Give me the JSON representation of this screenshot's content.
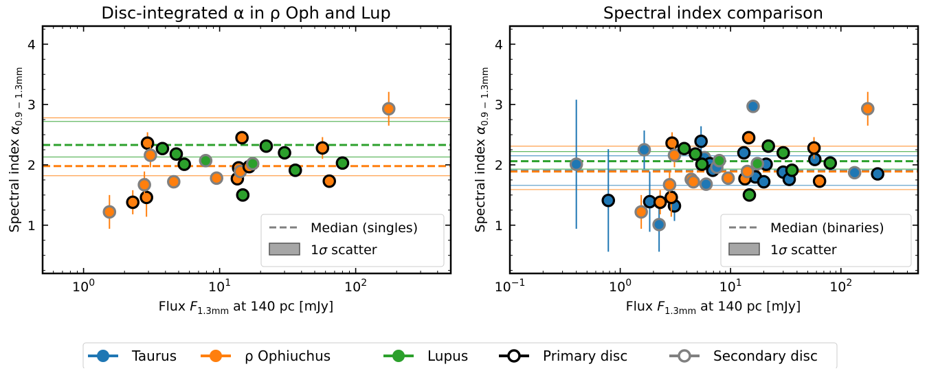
{
  "colors": {
    "taurus": "#1f77b4",
    "ophiuchus": "#ff7f0e",
    "lupus": "#2ca02c",
    "primary_edge": "#000000",
    "secondary_edge": "#808080",
    "median_line": "#808080",
    "scatter_fill": "#a6a6a6"
  },
  "bottom_legend": [
    {
      "label": "Taurus",
      "kind": "region",
      "color_key": "taurus"
    },
    {
      "label": "ρ Ophiuchus",
      "kind": "region",
      "color_key": "ophiuchus"
    },
    {
      "label": "Lupus",
      "kind": "region",
      "color_key": "lupus"
    },
    {
      "label": "Primary disc",
      "kind": "edge",
      "color_key": "primary_edge"
    },
    {
      "label": "Secondary disc",
      "kind": "edge",
      "color_key": "secondary_edge"
    }
  ],
  "chart_data": [
    {
      "type": "scatter",
      "title": "Disc-integrated α in ρ Oph and Lup",
      "xlabel": "Flux F_1.3mm at 140 pc [mJy]",
      "ylabel": "Spectral index α_0.9 − 1.3mm",
      "xscale": "log",
      "xlim": [
        0.5,
        500
      ],
      "ylim": [
        0.2,
        4.3
      ],
      "xticks": [
        1,
        10,
        100
      ],
      "xtick_labels": [
        "10^0",
        "10^1",
        "10^2"
      ],
      "yticks": [
        1,
        2,
        3,
        4
      ],
      "legend": {
        "position": "bottom-right",
        "entries": [
          "Median (singles)",
          "1σ scatter"
        ]
      },
      "bands": [
        {
          "region": "ophiuchus",
          "median": 1.98,
          "low": 1.82,
          "high": 2.78
        },
        {
          "region": "lupus",
          "median": 2.33,
          "low": 2.13,
          "high": 2.72
        }
      ],
      "points": [
        {
          "x": 1.55,
          "y": 1.22,
          "err": 0.28,
          "region": "ophiuchus",
          "disc": "secondary"
        },
        {
          "x": 2.3,
          "y": 1.38,
          "err": 0.2,
          "region": "ophiuchus",
          "disc": "primary"
        },
        {
          "x": 2.9,
          "y": 1.46,
          "err": 0.32,
          "region": "ophiuchus",
          "disc": "primary"
        },
        {
          "x": 2.8,
          "y": 1.67,
          "err": 0.22,
          "region": "ophiuchus",
          "disc": "secondary"
        },
        {
          "x": 2.95,
          "y": 2.36,
          "err": 0.18,
          "region": "ophiuchus",
          "disc": "primary"
        },
        {
          "x": 3.1,
          "y": 2.16,
          "err": 0.2,
          "region": "ophiuchus",
          "disc": "secondary"
        },
        {
          "x": 3.8,
          "y": 2.27,
          "err": 0.06,
          "region": "lupus",
          "disc": "primary"
        },
        {
          "x": 4.6,
          "y": 1.72,
          "err": 0.06,
          "region": "ophiuchus",
          "disc": "secondary"
        },
        {
          "x": 4.8,
          "y": 2.18,
          "err": 0.06,
          "region": "lupus",
          "disc": "primary"
        },
        {
          "x": 5.5,
          "y": 2.01,
          "err": 0.06,
          "region": "lupus",
          "disc": "primary"
        },
        {
          "x": 7.9,
          "y": 2.07,
          "err": 0.06,
          "region": "lupus",
          "disc": "secondary"
        },
        {
          "x": 9.5,
          "y": 1.78,
          "err": 0.06,
          "region": "ophiuchus",
          "disc": "secondary"
        },
        {
          "x": 13.5,
          "y": 1.77,
          "err": 0.06,
          "region": "ophiuchus",
          "disc": "primary"
        },
        {
          "x": 13.8,
          "y": 1.95,
          "err": 0.06,
          "region": "ophiuchus",
          "disc": "primary"
        },
        {
          "x": 14.2,
          "y": 1.89,
          "err": 0.06,
          "region": "ophiuchus",
          "disc": "secondary"
        },
        {
          "x": 14.6,
          "y": 2.45,
          "err": 0.06,
          "region": "ophiuchus",
          "disc": "primary"
        },
        {
          "x": 14.8,
          "y": 1.5,
          "err": 0.06,
          "region": "lupus",
          "disc": "primary"
        },
        {
          "x": 16.5,
          "y": 1.97,
          "err": 0.06,
          "region": "ophiuchus",
          "disc": "primary"
        },
        {
          "x": 17.5,
          "y": 2.02,
          "err": 0.06,
          "region": "lupus",
          "disc": "secondary"
        },
        {
          "x": 22,
          "y": 2.31,
          "err": 0.06,
          "region": "lupus",
          "disc": "primary"
        },
        {
          "x": 30,
          "y": 2.2,
          "err": 0.06,
          "region": "lupus",
          "disc": "primary"
        },
        {
          "x": 36,
          "y": 1.91,
          "err": 0.06,
          "region": "lupus",
          "disc": "primary"
        },
        {
          "x": 57,
          "y": 2.28,
          "err": 0.18,
          "region": "ophiuchus",
          "disc": "primary"
        },
        {
          "x": 64,
          "y": 1.73,
          "err": 0.06,
          "region": "ophiuchus",
          "disc": "primary"
        },
        {
          "x": 80,
          "y": 2.03,
          "err": 0.06,
          "region": "lupus",
          "disc": "primary"
        },
        {
          "x": 175,
          "y": 2.93,
          "err": 0.28,
          "region": "ophiuchus",
          "disc": "secondary"
        }
      ]
    },
    {
      "type": "scatter",
      "title": "Spectral index comparison",
      "xlabel": "Flux F_1.3mm at 140 pc [mJy]",
      "ylabel": "Spectral index α_0.9 − 1.3mm",
      "xscale": "log",
      "xlim": [
        0.1,
        500
      ],
      "ylim": [
        0.2,
        4.3
      ],
      "xticks": [
        0.1,
        1,
        10,
        100
      ],
      "xtick_labels": [
        "10^−1",
        "10^0",
        "10^1",
        "10^2"
      ],
      "yticks": [
        1,
        2,
        3,
        4
      ],
      "legend": {
        "position": "bottom-right",
        "entries": [
          "Median (binaries)",
          "1σ scatter"
        ]
      },
      "bands": [
        {
          "region": "taurus",
          "median": 1.9,
          "low": 1.66,
          "high": 2.15
        },
        {
          "region": "ophiuchus",
          "median": 1.89,
          "low": 1.59,
          "high": 2.31
        },
        {
          "region": "lupus",
          "median": 2.06,
          "low": 1.93,
          "high": 2.22
        }
      ],
      "points": [
        {
          "x": 0.4,
          "y": 2.01,
          "err": 1.07,
          "region": "taurus",
          "disc": "secondary"
        },
        {
          "x": 0.78,
          "y": 1.41,
          "err": 0.85,
          "xerr": 0.1,
          "region": "taurus",
          "disc": "primary"
        },
        {
          "x": 1.65,
          "y": 2.25,
          "err": 0.32,
          "region": "taurus",
          "disc": "secondary"
        },
        {
          "x": 1.85,
          "y": 1.39,
          "err": 0.5,
          "region": "taurus",
          "disc": "primary"
        },
        {
          "x": 2.25,
          "y": 1.01,
          "err": 0.45,
          "region": "taurus",
          "disc": "secondary"
        },
        {
          "x": 3.1,
          "y": 1.32,
          "err": 0.25,
          "region": "taurus",
          "disc": "primary"
        },
        {
          "x": 5.4,
          "y": 2.39,
          "err": 0.25,
          "region": "taurus",
          "disc": "primary"
        },
        {
          "x": 5.8,
          "y": 2.12,
          "err": 0.1,
          "region": "taurus",
          "disc": "secondary"
        },
        {
          "x": 6.0,
          "y": 1.68,
          "err": 0.1,
          "region": "taurus",
          "disc": "secondary"
        },
        {
          "x": 6.5,
          "y": 2.02,
          "err": 0.1,
          "region": "taurus",
          "disc": "primary"
        },
        {
          "x": 6.9,
          "y": 1.91,
          "err": 0.08,
          "region": "taurus",
          "disc": "primary"
        },
        {
          "x": 7.5,
          "y": 1.96,
          "err": 0.08,
          "region": "taurus",
          "disc": "secondary"
        },
        {
          "x": 13.2,
          "y": 2.2,
          "err": 0.08,
          "region": "taurus",
          "disc": "primary"
        },
        {
          "x": 16.0,
          "y": 2.97,
          "err": 0.06,
          "region": "taurus",
          "disc": "secondary"
        },
        {
          "x": 16.8,
          "y": 1.8,
          "err": 0.08,
          "region": "taurus",
          "disc": "primary"
        },
        {
          "x": 20.0,
          "y": 1.72,
          "err": 0.08,
          "region": "taurus",
          "disc": "primary"
        },
        {
          "x": 21.0,
          "y": 2.01,
          "err": 0.08,
          "region": "taurus",
          "disc": "primary"
        },
        {
          "x": 30.0,
          "y": 1.88,
          "err": 0.08,
          "region": "taurus",
          "disc": "primary"
        },
        {
          "x": 34.0,
          "y": 1.76,
          "err": 0.08,
          "region": "taurus",
          "disc": "primary"
        },
        {
          "x": 58.0,
          "y": 2.09,
          "err": 0.08,
          "region": "taurus",
          "disc": "primary"
        },
        {
          "x": 133.0,
          "y": 1.87,
          "err": 0.06,
          "region": "taurus",
          "disc": "secondary"
        },
        {
          "x": 215.0,
          "y": 1.85,
          "err": 0.06,
          "region": "taurus",
          "disc": "primary"
        },
        {
          "x": 1.55,
          "y": 1.22,
          "err": 0.28,
          "region": "ophiuchus",
          "disc": "secondary"
        },
        {
          "x": 2.3,
          "y": 1.38,
          "err": 0.2,
          "region": "ophiuchus",
          "disc": "primary"
        },
        {
          "x": 2.9,
          "y": 1.46,
          "err": 0.32,
          "region": "ophiuchus",
          "disc": "primary"
        },
        {
          "x": 2.8,
          "y": 1.67,
          "err": 0.22,
          "region": "ophiuchus",
          "disc": "secondary"
        },
        {
          "x": 2.95,
          "y": 2.36,
          "err": 0.18,
          "region": "ophiuchus",
          "disc": "primary"
        },
        {
          "x": 3.1,
          "y": 2.16,
          "err": 0.2,
          "region": "ophiuchus",
          "disc": "secondary"
        },
        {
          "x": 3.8,
          "y": 2.27,
          "err": 0.06,
          "region": "lupus",
          "disc": "primary"
        },
        {
          "x": 4.4,
          "y": 1.76,
          "err": 0.06,
          "region": "ophiuchus",
          "disc": "secondary"
        },
        {
          "x": 4.6,
          "y": 1.72,
          "err": 0.06,
          "region": "ophiuchus",
          "disc": "secondary"
        },
        {
          "x": 4.8,
          "y": 2.18,
          "err": 0.06,
          "region": "lupus",
          "disc": "primary"
        },
        {
          "x": 5.5,
          "y": 2.01,
          "err": 0.06,
          "region": "lupus",
          "disc": "primary"
        },
        {
          "x": 7.9,
          "y": 2.07,
          "err": 0.06,
          "region": "lupus",
          "disc": "secondary"
        },
        {
          "x": 9.5,
          "y": 1.78,
          "err": 0.06,
          "region": "ophiuchus",
          "disc": "secondary"
        },
        {
          "x": 13.5,
          "y": 1.77,
          "err": 0.06,
          "region": "ophiuchus",
          "disc": "primary"
        },
        {
          "x": 14.2,
          "y": 1.89,
          "err": 0.06,
          "region": "ophiuchus",
          "disc": "secondary"
        },
        {
          "x": 14.6,
          "y": 2.45,
          "err": 0.06,
          "region": "ophiuchus",
          "disc": "primary"
        },
        {
          "x": 14.8,
          "y": 1.5,
          "err": 0.06,
          "region": "lupus",
          "disc": "primary"
        },
        {
          "x": 17.5,
          "y": 2.02,
          "err": 0.06,
          "region": "lupus",
          "disc": "secondary"
        },
        {
          "x": 22.0,
          "y": 2.31,
          "err": 0.06,
          "region": "lupus",
          "disc": "primary"
        },
        {
          "x": 30.0,
          "y": 2.2,
          "err": 0.06,
          "region": "lupus",
          "disc": "primary"
        },
        {
          "x": 36.0,
          "y": 1.91,
          "err": 0.06,
          "region": "lupus",
          "disc": "primary"
        },
        {
          "x": 57.0,
          "y": 2.28,
          "err": 0.18,
          "region": "ophiuchus",
          "disc": "primary"
        },
        {
          "x": 64.0,
          "y": 1.73,
          "err": 0.06,
          "region": "ophiuchus",
          "disc": "primary"
        },
        {
          "x": 80.0,
          "y": 2.03,
          "err": 0.06,
          "region": "lupus",
          "disc": "primary"
        },
        {
          "x": 175.0,
          "y": 2.93,
          "err": 0.28,
          "region": "ophiuchus",
          "disc": "secondary"
        }
      ]
    }
  ]
}
